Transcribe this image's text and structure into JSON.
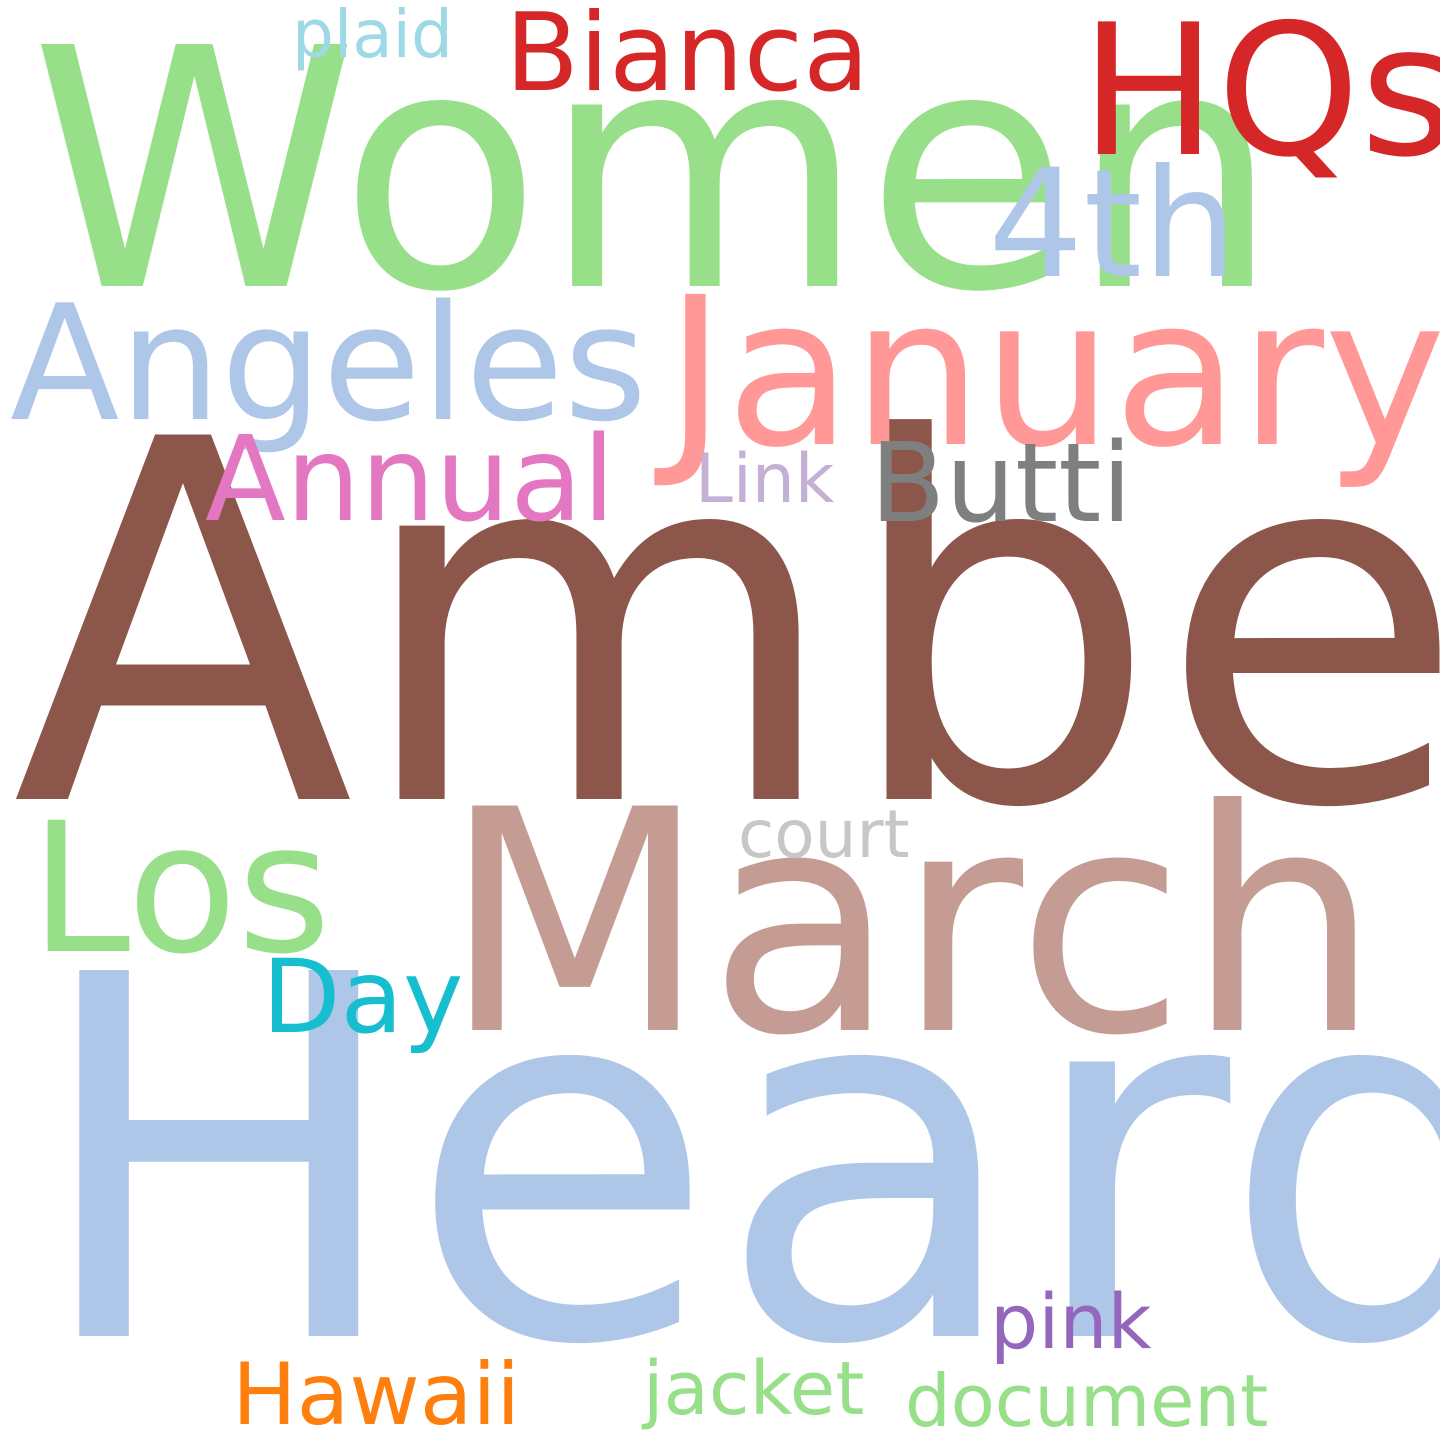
{
  "words": [
    {
      "text": "Amber",
      "color": "#8c564b"
    },
    {
      "text": "Heard",
      "color": "#aec7e8"
    },
    {
      "text": "Women",
      "color": "#98df8a"
    },
    {
      "text": "March",
      "color": "#c49c94"
    },
    {
      "text": "January",
      "color": "#ff9896"
    },
    {
      "text": "HQs",
      "color": "#d62728"
    },
    {
      "text": "Angeles",
      "color": "#aec7e8"
    },
    {
      "text": "Los",
      "color": "#98df8a"
    },
    {
      "text": "Bianca",
      "color": "#d62728"
    },
    {
      "text": "4th",
      "color": "#aec7e8"
    },
    {
      "text": "Annual",
      "color": "#e377c2"
    },
    {
      "text": "Butti",
      "color": "#7f7f7f"
    },
    {
      "text": "Day",
      "color": "#17becf"
    },
    {
      "text": "Link",
      "color": "#c5b0d5"
    },
    {
      "text": "court",
      "color": "#c7c7c7"
    },
    {
      "text": "plaid",
      "color": "#9edae5"
    },
    {
      "text": "pink",
      "color": "#9467bd"
    },
    {
      "text": "Hawaii",
      "color": "#ff7f0e"
    },
    {
      "text": "jacket",
      "color": "#98df8a"
    },
    {
      "text": "document",
      "color": "#98df8a"
    }
  ]
}
